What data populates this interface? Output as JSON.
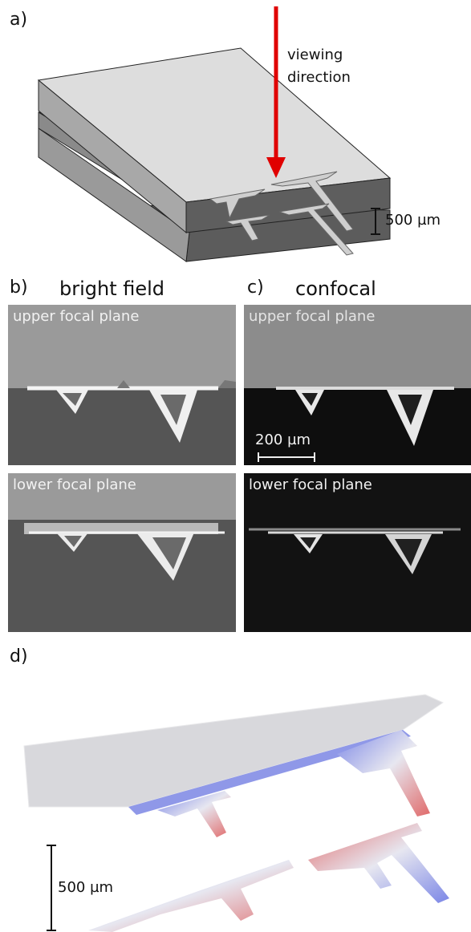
{
  "panel_a": {
    "label": "a)",
    "arrow_label_line1": "viewing",
    "arrow_label_line2": "direction",
    "scale_label": "500 µm"
  },
  "panel_b": {
    "label": "b)",
    "title": "bright field"
  },
  "panel_c": {
    "label": "c)",
    "title": "confocal",
    "scale_label": "200 µm"
  },
  "images": {
    "upper_label": "upper focal plane",
    "lower_label": "lower focal plane"
  },
  "panel_d": {
    "label": "d)",
    "scale_label": "500 µm"
  },
  "colors": {
    "arrow": "#e00000",
    "slab_top": "#dddddd",
    "slab_side": "#5c5c5c",
    "structure": "#c8c8c8",
    "surface": "#d6d6dc",
    "blue": "#7b86e6",
    "red": "#e06a6a"
  }
}
